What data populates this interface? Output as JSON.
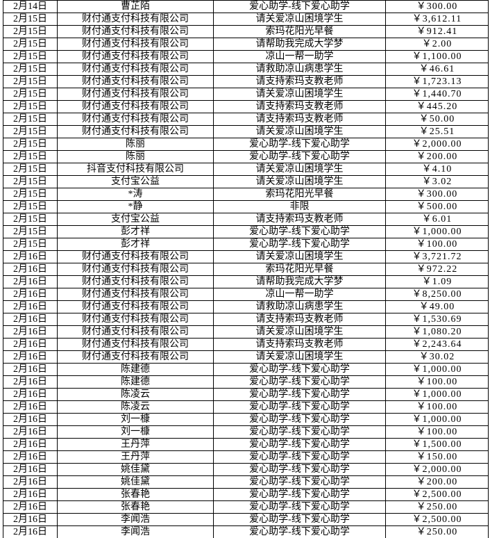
{
  "colors": {
    "background": "#ffffff",
    "grid_border": "#000000",
    "text": "#000000"
  },
  "table": {
    "name": "donation-ledger",
    "columns": [
      {
        "key": "date",
        "role": "donation-date"
      },
      {
        "key": "donor",
        "role": "donor-name"
      },
      {
        "key": "project",
        "role": "project-name"
      },
      {
        "key": "amount",
        "role": "donation-amount"
      }
    ],
    "rows": [
      {
        "date": "2月14日",
        "donor": "曹芷陌",
        "project": "爱心助学-线下爱心助学",
        "amount": "￥300.00"
      },
      {
        "date": "2月15日",
        "donor": "财付通支付科技有限公司",
        "project": "请关爱凉山困境学生",
        "amount": "￥3,612.11"
      },
      {
        "date": "2月15日",
        "donor": "财付通支付科技有限公司",
        "project": "索玛花阳光早餐",
        "amount": "￥912.41"
      },
      {
        "date": "2月15日",
        "donor": "财付通支付科技有限公司",
        "project": "请帮助我完成大学梦",
        "amount": "￥2.00"
      },
      {
        "date": "2月15日",
        "donor": "财付通支付科技有限公司",
        "project": "凉山一帮一助学",
        "amount": "￥1,100.00"
      },
      {
        "date": "2月15日",
        "donor": "财付通支付科技有限公司",
        "project": "请救助凉山病患学生",
        "amount": "￥46.61"
      },
      {
        "date": "2月15日",
        "donor": "财付通支付科技有限公司",
        "project": "请支持索玛支教老师",
        "amount": "￥1,723.13"
      },
      {
        "date": "2月15日",
        "donor": "财付通支付科技有限公司",
        "project": "请关爱凉山困境学生",
        "amount": "￥1,440.70"
      },
      {
        "date": "2月15日",
        "donor": "财付通支付科技有限公司",
        "project": "请支持索玛支教老师",
        "amount": "￥445.20"
      },
      {
        "date": "2月15日",
        "donor": "财付通支付科技有限公司",
        "project": "请支持索玛支教老师",
        "amount": "￥50.00"
      },
      {
        "date": "2月15日",
        "donor": "财付通支付科技有限公司",
        "project": "请关爱凉山困境学生",
        "amount": "￥25.51"
      },
      {
        "date": "2月15日",
        "donor": "陈丽",
        "project": "爱心助学-线下爱心助学",
        "amount": "￥2,000.00"
      },
      {
        "date": "2月15日",
        "donor": "陈丽",
        "project": "爱心助学-线下爱心助学",
        "amount": "￥200.00"
      },
      {
        "date": "2月15日",
        "donor": "抖音支付科技有限公司",
        "project": "请关爱凉山困境学生",
        "amount": "￥4.10"
      },
      {
        "date": "2月15日",
        "donor": "支付宝公益",
        "project": "请关爱凉山困境学生",
        "amount": "￥3.02"
      },
      {
        "date": "2月15日",
        "donor": "*涛",
        "project": "索玛花阳光早餐",
        "amount": "￥300.00"
      },
      {
        "date": "2月15日",
        "donor": "*静",
        "project": "非限",
        "amount": "￥500.00"
      },
      {
        "date": "2月15日",
        "donor": "支付宝公益",
        "project": "请支持索玛支教老师",
        "amount": "￥6.01"
      },
      {
        "date": "2月15日",
        "donor": "彭才祥",
        "project": "爱心助学-线下爱心助学",
        "amount": "￥1,000.00"
      },
      {
        "date": "2月15日",
        "donor": "彭才祥",
        "project": "爱心助学-线下爱心助学",
        "amount": "￥100.00"
      },
      {
        "date": "2月16日",
        "donor": "财付通支付科技有限公司",
        "project": "请关爱凉山困境学生",
        "amount": "￥3,721.72"
      },
      {
        "date": "2月16日",
        "donor": "财付通支付科技有限公司",
        "project": "索玛花阳光早餐",
        "amount": "￥972.22"
      },
      {
        "date": "2月16日",
        "donor": "财付通支付科技有限公司",
        "project": "请帮助我完成大学梦",
        "amount": "￥1.09"
      },
      {
        "date": "2月16日",
        "donor": "财付通支付科技有限公司",
        "project": "凉山一帮一助学",
        "amount": "￥8,250.00"
      },
      {
        "date": "2月16日",
        "donor": "财付通支付科技有限公司",
        "project": "请救助凉山病患学生",
        "amount": "￥49.00"
      },
      {
        "date": "2月16日",
        "donor": "财付通支付科技有限公司",
        "project": "请支持索玛支教老师",
        "amount": "￥1,530.69"
      },
      {
        "date": "2月16日",
        "donor": "财付通支付科技有限公司",
        "project": "请关爱凉山困境学生",
        "amount": "￥1,080.20"
      },
      {
        "date": "2月16日",
        "donor": "财付通支付科技有限公司",
        "project": "请支持索玛支教老师",
        "amount": "￥2,243.64"
      },
      {
        "date": "2月16日",
        "donor": "财付通支付科技有限公司",
        "project": "请关爱凉山困境学生",
        "amount": "￥30.02"
      },
      {
        "date": "2月16日",
        "donor": "陈建德",
        "project": "爱心助学-线下爱心助学",
        "amount": "￥1,000.00"
      },
      {
        "date": "2月16日",
        "donor": "陈建德",
        "project": "爱心助学-线下爱心助学",
        "amount": "￥100.00"
      },
      {
        "date": "2月16日",
        "donor": "陈凌云",
        "project": "爱心助学-线下爱心助学",
        "amount": "￥1,000.00"
      },
      {
        "date": "2月16日",
        "donor": "陈凌云",
        "project": "爱心助学-线下爱心助学",
        "amount": "￥100.00"
      },
      {
        "date": "2月16日",
        "donor": "刘一槺",
        "project": "爱心助学-线下爱心助学",
        "amount": "￥1,000.00"
      },
      {
        "date": "2月16日",
        "donor": "刘一槺",
        "project": "爱心助学-线下爱心助学",
        "amount": "￥100.00"
      },
      {
        "date": "2月16日",
        "donor": "王丹萍",
        "project": "爱心助学-线下爱心助学",
        "amount": "￥1,500.00"
      },
      {
        "date": "2月16日",
        "donor": "王丹萍",
        "project": "爱心助学-线下爱心助学",
        "amount": "￥150.00"
      },
      {
        "date": "2月16日",
        "donor": "姚佳黛",
        "project": "爱心助学-线下爱心助学",
        "amount": "￥2,000.00"
      },
      {
        "date": "2月16日",
        "donor": "姚佳黛",
        "project": "爱心助学-线下爱心助学",
        "amount": "￥200.00"
      },
      {
        "date": "2月16日",
        "donor": "张春艳",
        "project": "爱心助学-线下爱心助学",
        "amount": "￥2,500.00"
      },
      {
        "date": "2月16日",
        "donor": "张春艳",
        "project": "爱心助学-线下爱心助学",
        "amount": "￥250.00"
      },
      {
        "date": "2月16日",
        "donor": "李闻浩",
        "project": "爱心助学-线下爱心助学",
        "amount": "￥2,500.00"
      },
      {
        "date": "2月16日",
        "donor": "李闻浩",
        "project": "爱心助学-线下爱心助学",
        "amount": "￥250.00"
      }
    ]
  }
}
